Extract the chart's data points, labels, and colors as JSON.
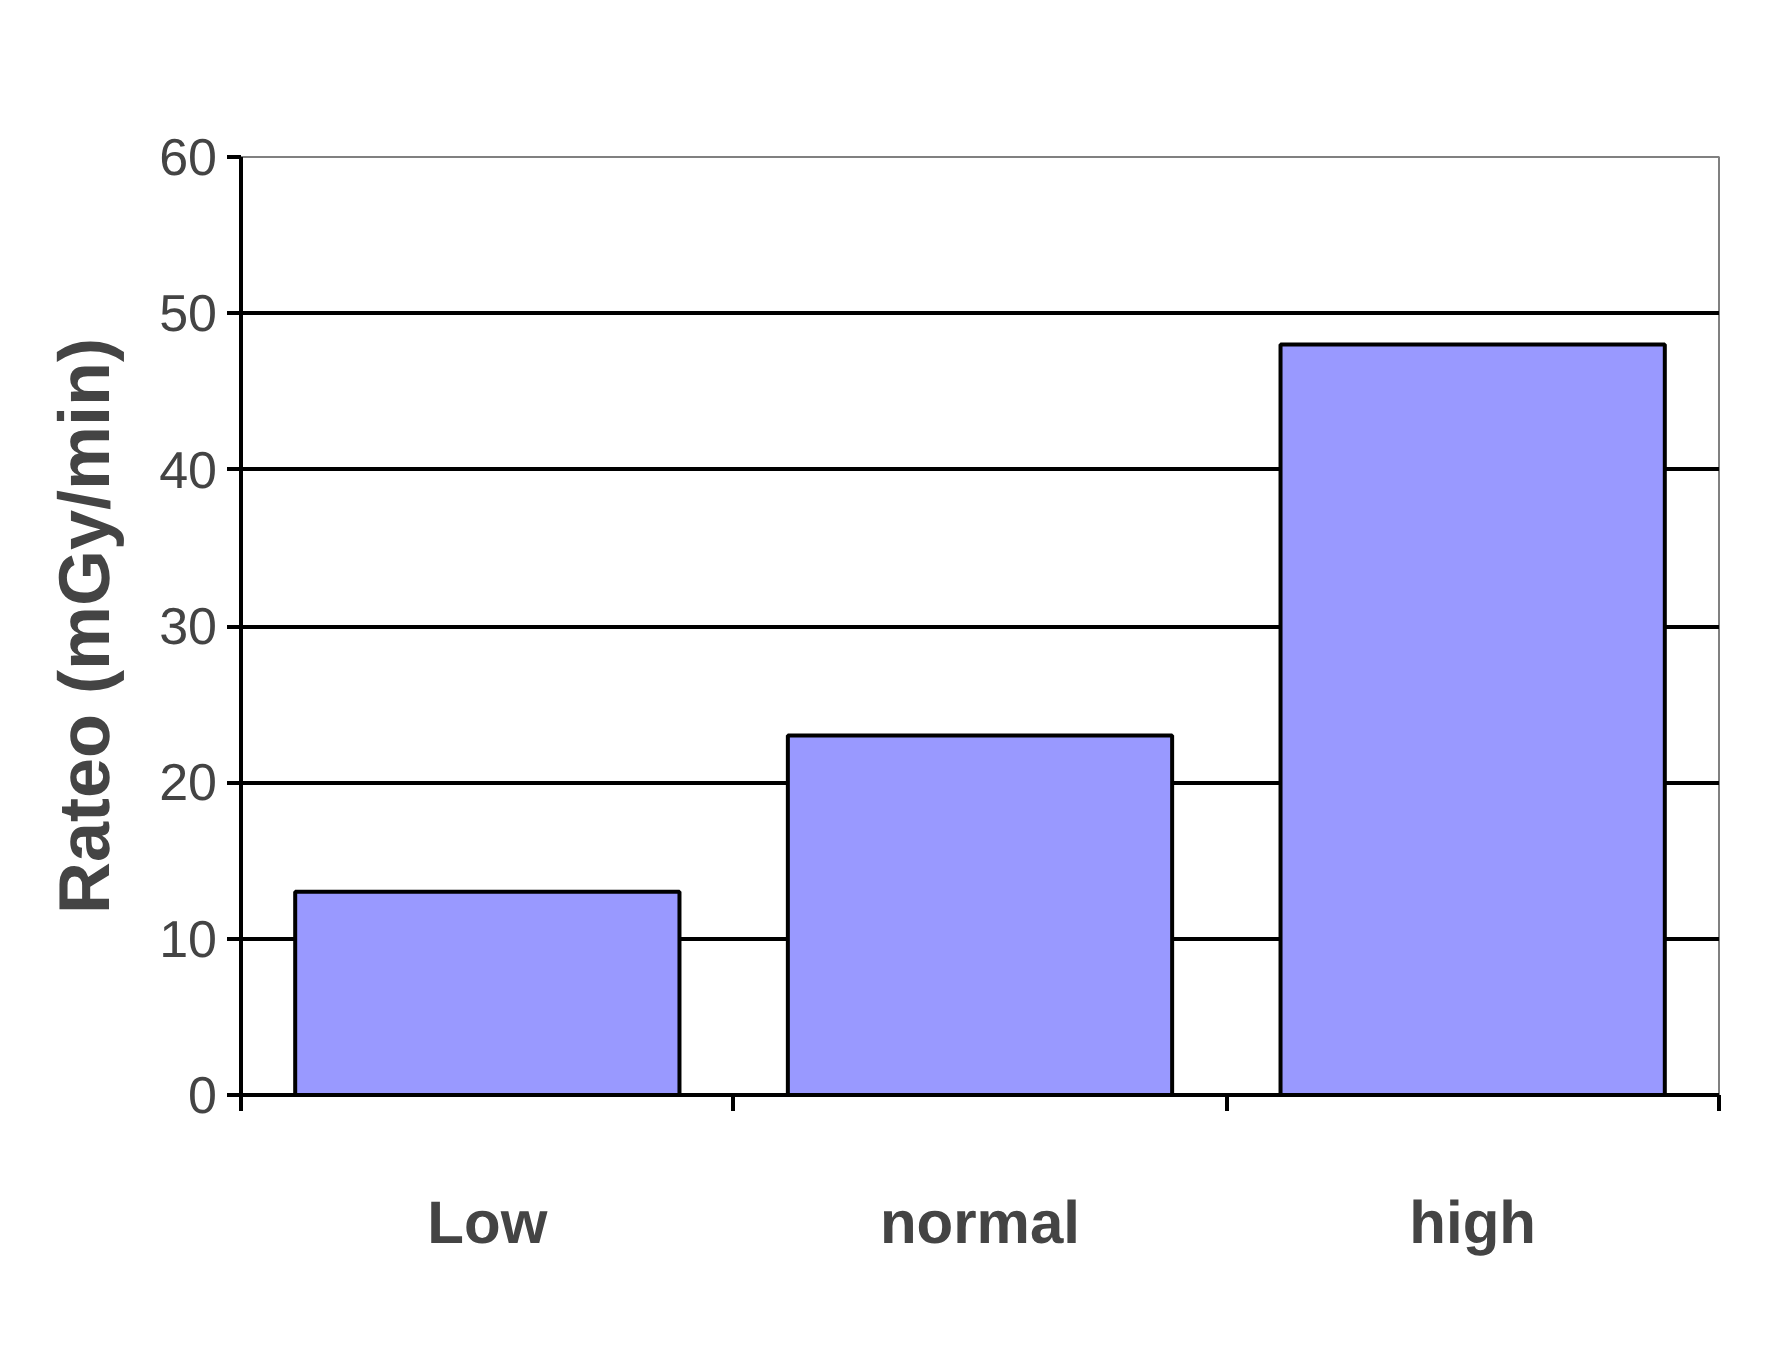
{
  "chart_data": {
    "type": "bar",
    "ylabel": "Rateo (mGy/min)",
    "categories": [
      "Low",
      "normal",
      "high"
    ],
    "values": [
      13,
      23,
      48
    ],
    "color": "#9999ff",
    "ylim": [
      0,
      60
    ],
    "yticks": [
      0,
      10,
      20,
      30,
      40,
      50,
      60
    ],
    "grid": "y"
  }
}
